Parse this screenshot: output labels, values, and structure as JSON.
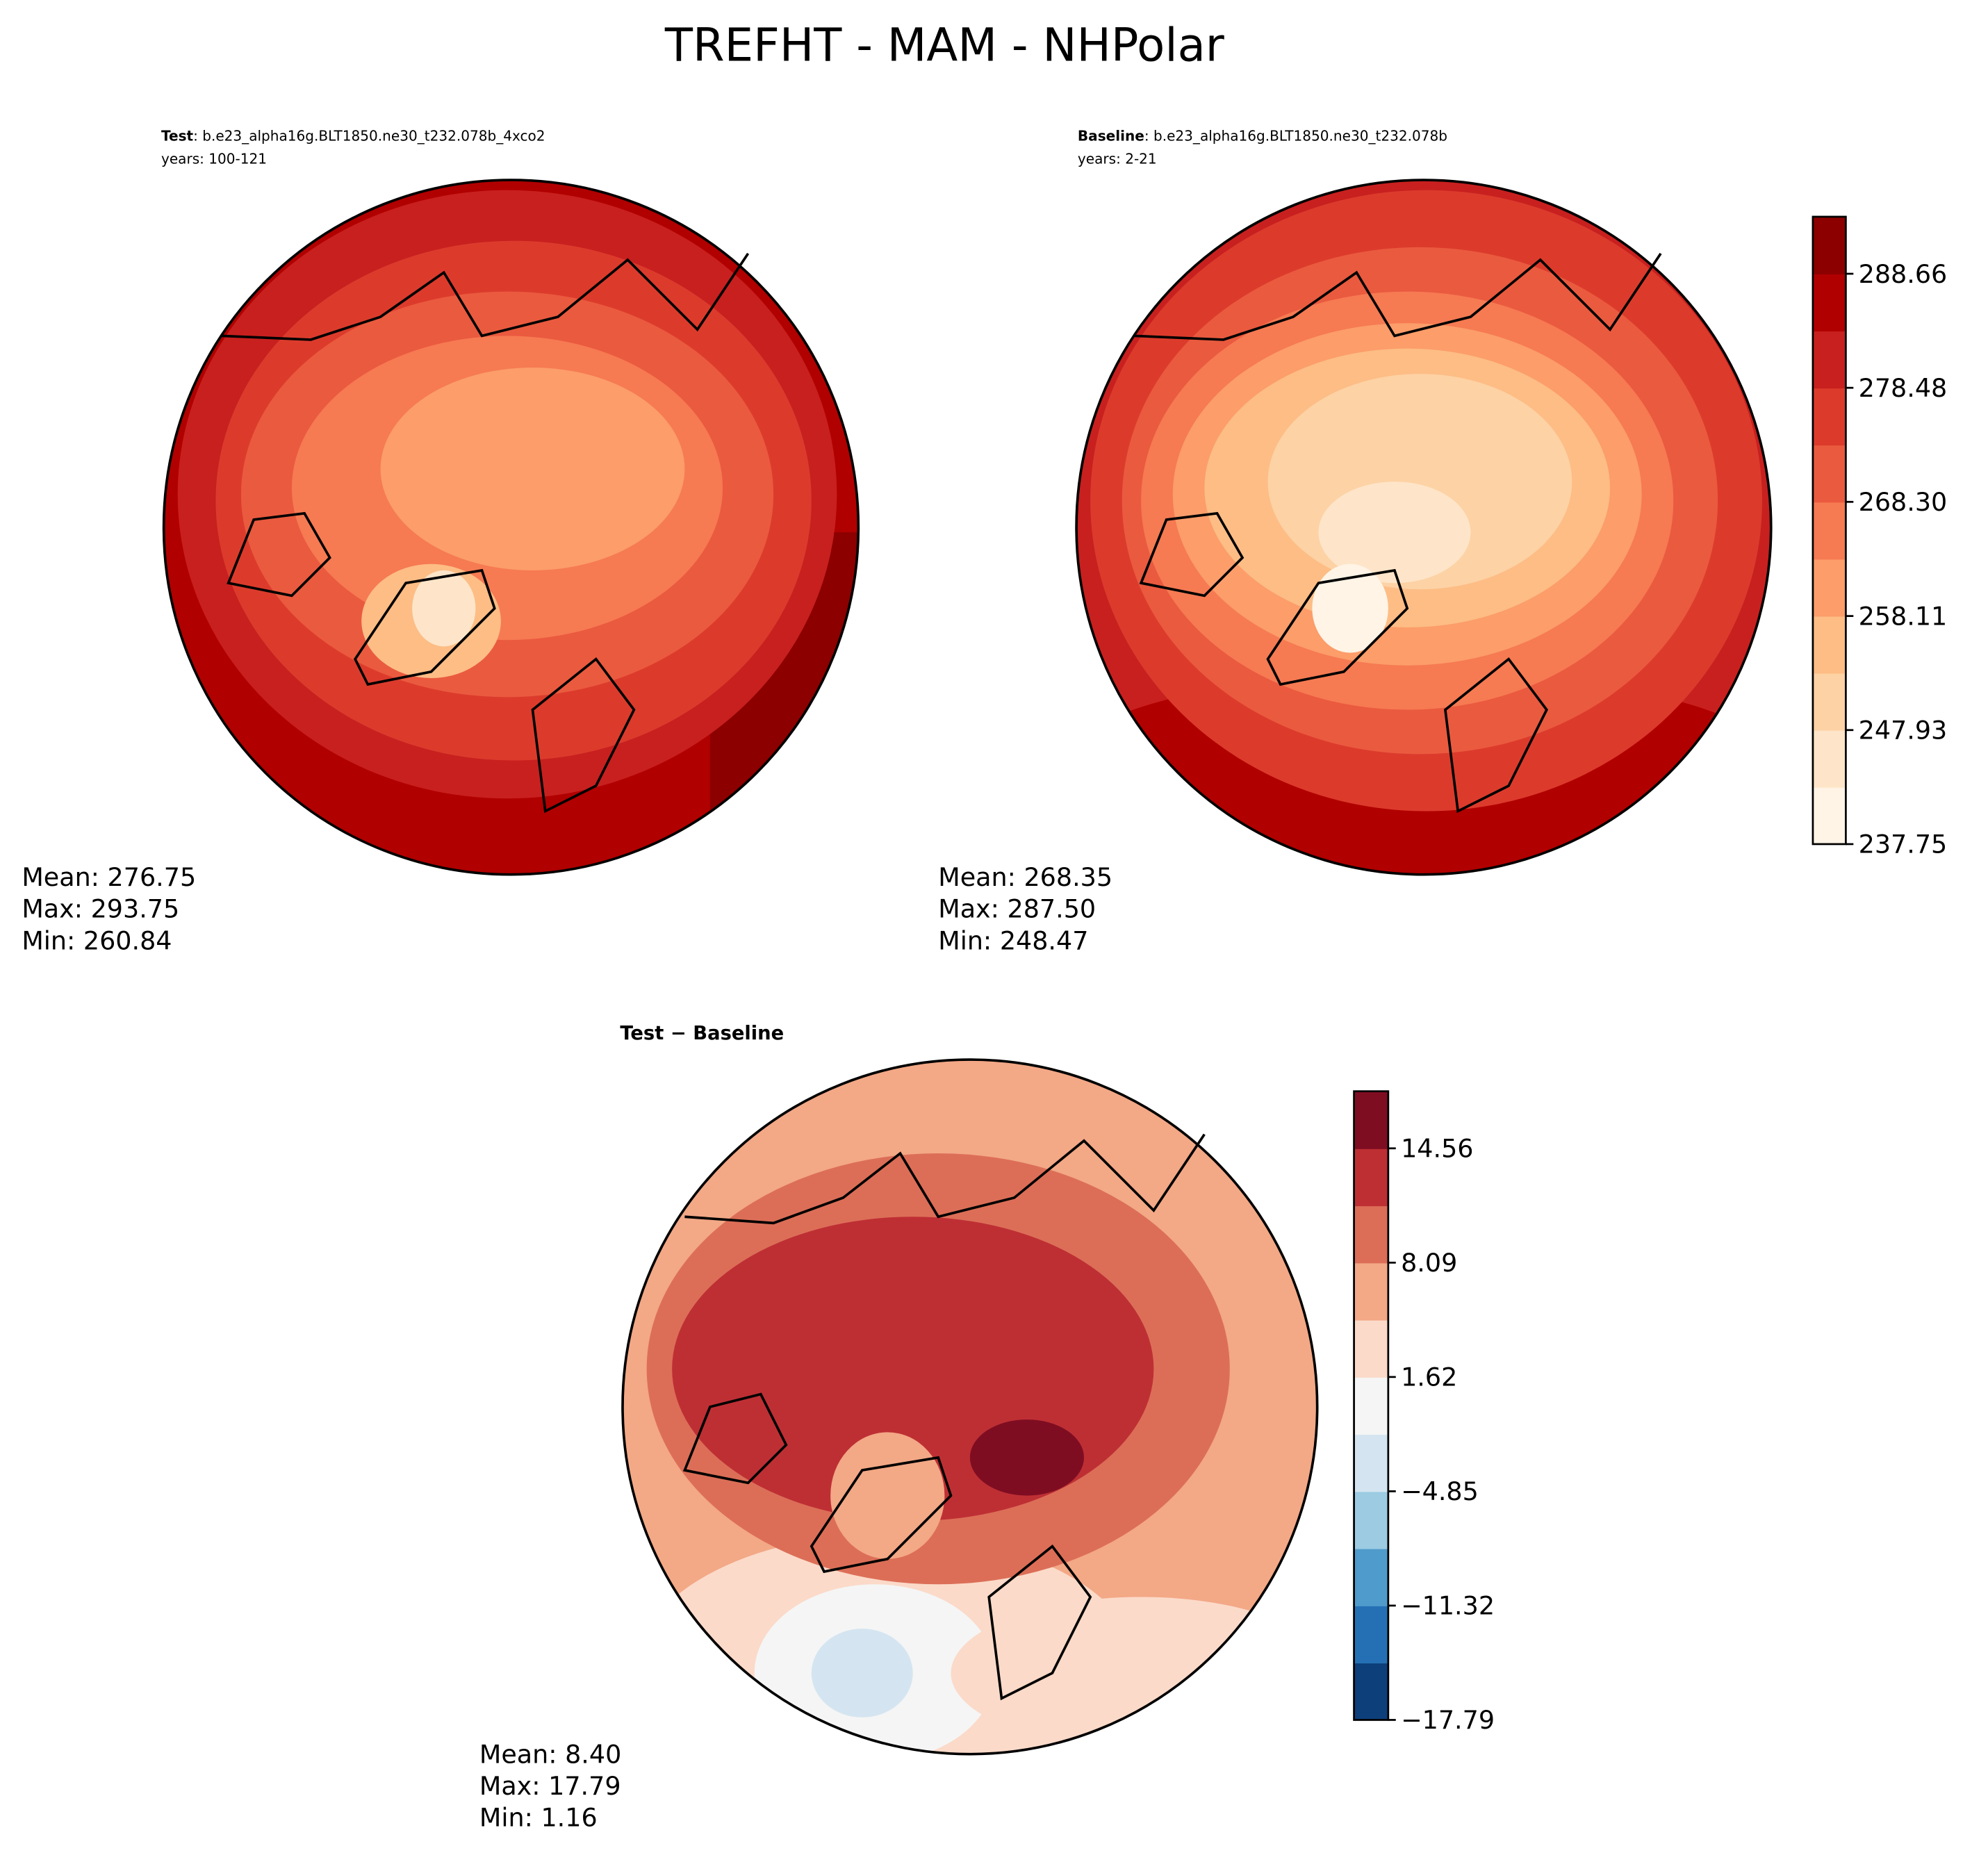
{
  "title": "TREFHT - MAM - NHPolar",
  "panels": [
    {
      "label_bold": "Test",
      "label_rest": ": b.e23_alpha16g.BLT1850.ne30_t232.078b_4xco2",
      "years": "years: 100-121",
      "stats": [
        "Mean: 276.75",
        "Max: 293.75",
        "Min: 260.84"
      ]
    },
    {
      "label_bold": "Baseline",
      "label_rest": ": b.e23_alpha16g.BLT1850.ne30_t232.078b",
      "years": "years: 2-21",
      "stats": [
        "Mean: 268.35",
        "Max: 287.50",
        "Min: 248.47"
      ]
    },
    {
      "label_bold": "Test − Baseline",
      "stats": [
        "Mean:  8.40",
        "Max: 17.79",
        "Min:  1.16"
      ]
    }
  ],
  "colorbars": [
    {
      "clim": [
        237.75,
        293.75
      ],
      "ticks": [
        237.75,
        247.93,
        258.11,
        {
          "value": 268.3,
          "label": "268.30"
        },
        278.48,
        288.66
      ],
      "colors": [
        "#fff4e6",
        "#fee5c9",
        "#fdd2a5",
        "#fdbd85",
        "#fc9d6a",
        "#f67a52",
        "#ea5a3f",
        "#dc3b2c",
        "#c8201f",
        "#b10000",
        "#8c0000"
      ]
    },
    {
      "clim": [
        -17.79,
        17.79
      ],
      "ticks": [
        {
          "value": -17.79,
          "label": "−17.79"
        },
        {
          "value": -11.32,
          "label": "−11.32"
        },
        {
          "value": -4.85,
          "label": "−4.85"
        },
        1.62,
        8.09,
        14.56
      ],
      "colors": [
        "#0d3f7a",
        "#2570b5",
        "#4f9bcb",
        "#9ccbe2",
        "#d4e5f1",
        "#f5f5f5",
        "#fbdac9",
        "#f3a886",
        "#dc6e57",
        "#be2f34",
        "#7f0d22"
      ]
    }
  ]
}
